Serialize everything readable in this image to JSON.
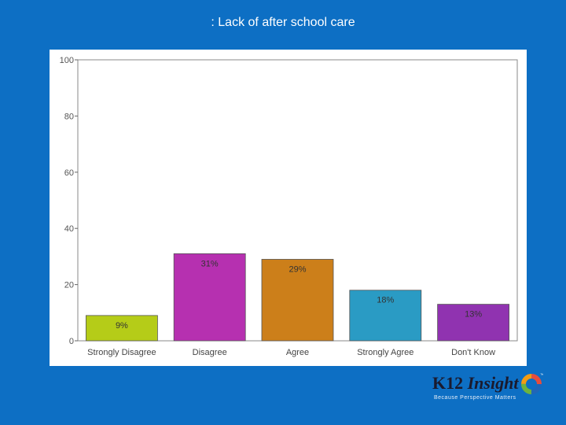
{
  "slide": {
    "title": ": Lack of after school care"
  },
  "chart_data": {
    "type": "bar",
    "title": "",
    "xlabel": "",
    "ylabel": "",
    "ylim": [
      0,
      100
    ],
    "yticks": [
      0,
      20,
      40,
      60,
      80,
      100
    ],
    "grid": false,
    "categories": [
      "Strongly Disagree",
      "Disagree",
      "Agree",
      "Strongly Agree",
      "Don't Know"
    ],
    "values": [
      9,
      31,
      29,
      18,
      13
    ],
    "data_labels": [
      "9%",
      "31%",
      "29%",
      "18%",
      "13%"
    ],
    "colors": [
      "#b5cc18",
      "#b630b0",
      "#cc7f1a",
      "#2a9bc4",
      "#9033b0"
    ]
  },
  "logo": {
    "brand_part1": "K12 ",
    "brand_part2": "Insight",
    "trademark": "™",
    "tagline": "Because Perspective Matters",
    "ring_colors": [
      "#1f66b8",
      "#6db33f",
      "#f39c12",
      "#e74c3c"
    ]
  }
}
